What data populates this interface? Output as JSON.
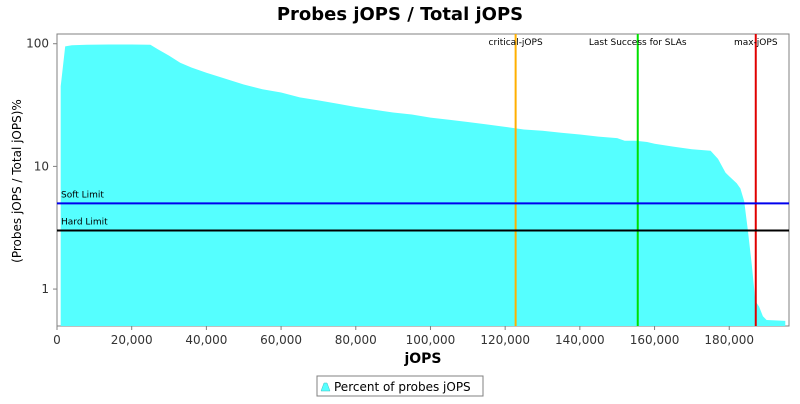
{
  "chart_data": {
    "type": "area",
    "title": "Probes jOPS / Total jOPS",
    "xlabel": "jOPS",
    "ylabel": "(Probes jOPS / Total jOPS)%",
    "y_scale": "log",
    "xlim": [
      0,
      196000
    ],
    "ylim": [
      0.5,
      120
    ],
    "x_ticks": [
      0,
      20000,
      40000,
      60000,
      80000,
      100000,
      120000,
      140000,
      160000,
      180000
    ],
    "x_tick_labels": [
      "0",
      "20,000",
      "40,000",
      "60,000",
      "80,000",
      "100,000",
      "120,000",
      "140,000",
      "160,000",
      "180,000"
    ],
    "y_ticks": [
      1,
      10,
      100
    ],
    "y_tick_labels": [
      "1",
      "10",
      "100"
    ],
    "series": [
      {
        "name": "Percent of probes jOPS",
        "color": "#55ffff",
        "x": [
          1000,
          2200,
          4000,
          8000,
          14000,
          20000,
          25000,
          27000,
          30000,
          33000,
          36000,
          40000,
          45000,
          50000,
          55000,
          60000,
          65000,
          70000,
          75000,
          80000,
          85000,
          90000,
          95000,
          100000,
          105000,
          110000,
          115000,
          120000,
          125000,
          130000,
          135000,
          140000,
          145000,
          150000,
          152000,
          155000,
          158000,
          160000,
          165000,
          170000,
          175000,
          177000,
          179000,
          180000,
          182000,
          183000,
          184000,
          185000,
          186000,
          187000,
          188000,
          189000,
          190000,
          195000
        ],
        "y": [
          45,
          95,
          97,
          98,
          98.5,
          98.5,
          98,
          90,
          80,
          70,
          64,
          58,
          52,
          46.5,
          42.5,
          40,
          36.5,
          34.5,
          32.5,
          30.5,
          29,
          27.5,
          26.5,
          25,
          24,
          23,
          22,
          21,
          20,
          19.5,
          18.8,
          18.2,
          17.5,
          17,
          16.2,
          16.2,
          15.8,
          15.3,
          14.5,
          13.8,
          13.4,
          11.5,
          8.9,
          8.3,
          7.3,
          6.6,
          5.2,
          3.0,
          1.6,
          0.8,
          0.72,
          0.6,
          0.56,
          0.55
        ]
      }
    ],
    "reference_lines": [
      {
        "orientation": "vertical",
        "x": 122800,
        "label": "critical-jOPS",
        "color": "#ffb000"
      },
      {
        "orientation": "vertical",
        "x": 155500,
        "label": "Last Success for SLAs",
        "color": "#00e000"
      },
      {
        "orientation": "vertical",
        "x": 187100,
        "label": "max-jOPS",
        "color": "#e00000"
      },
      {
        "orientation": "horizontal",
        "y": 5,
        "label": "Soft Limit",
        "color": "#0000ee"
      },
      {
        "orientation": "horizontal",
        "y": 3,
        "label": "Hard Limit",
        "color": "#000000"
      }
    ],
    "grid": false,
    "legend_position": "bottom"
  }
}
